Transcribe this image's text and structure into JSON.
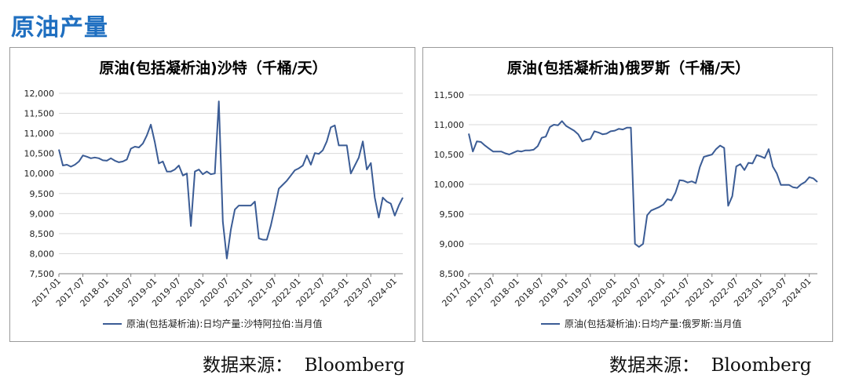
{
  "page": {
    "title": "原油产量"
  },
  "sources": [
    "数据来源：  Bloomberg",
    "数据来源：  Bloomberg"
  ],
  "colors": {
    "title": "#1f6fc0",
    "series": "#3b5c95",
    "grid": "#d9d9d9",
    "axis": "#7f7f7f"
  },
  "chart_data": [
    {
      "type": "line",
      "title": "原油(包括凝析油)沙特（千桶/天）",
      "xlabel": "",
      "ylabel": "",
      "ylim": [
        7500,
        12000
      ],
      "yticks": [
        7500,
        8000,
        8500,
        9000,
        9500,
        10000,
        10500,
        11000,
        11500,
        12000
      ],
      "ytick_labels": [
        "7,500",
        "8,000",
        "8,500",
        "9,000",
        "9,500",
        "10,000",
        "10,500",
        "11,000",
        "11,500",
        "12,000"
      ],
      "x_start": "2017-01",
      "xtick_labels": [
        "2017-01",
        "2017-07",
        "2018-01",
        "2018-07",
        "2019-01",
        "2019-07",
        "2020-01",
        "2020-07",
        "2021-01",
        "2021-07",
        "2022-01",
        "2022-07",
        "2023-01",
        "2023-07",
        "2024-01"
      ],
      "grid": true,
      "legend_position": "bottom",
      "series": [
        {
          "name": "原油(包括凝析油):日均产量:沙特阿拉伯:当月值",
          "values": [
            10600,
            10200,
            10220,
            10170,
            10220,
            10300,
            10450,
            10420,
            10380,
            10400,
            10380,
            10330,
            10320,
            10380,
            10320,
            10280,
            10300,
            10350,
            10620,
            10670,
            10650,
            10750,
            10950,
            11220,
            10780,
            10250,
            10300,
            10050,
            10050,
            10100,
            10200,
            9950,
            10000,
            8690,
            10050,
            10100,
            9980,
            10050,
            9980,
            10000,
            11800,
            8800,
            7880,
            8600,
            9100,
            9200,
            9200,
            9200,
            9200,
            9300,
            8380,
            8350,
            8350,
            8700,
            9150,
            9620,
            9720,
            9820,
            9950,
            10080,
            10130,
            10200,
            10450,
            10220,
            10510,
            10490,
            10580,
            10800,
            11150,
            11200,
            10700,
            10700,
            10700,
            10000,
            10200,
            10400,
            10800,
            10100,
            10260,
            9400,
            8900,
            9400,
            9300,
            9250,
            8950,
            9200,
            9400
          ]
        }
      ]
    },
    {
      "type": "line",
      "title": "原油(包括凝析油)俄罗斯（千桶/天）",
      "xlabel": "",
      "ylabel": "",
      "ylim": [
        8500,
        11500
      ],
      "yticks": [
        8500,
        9000,
        9500,
        10000,
        10500,
        11000,
        11500
      ],
      "ytick_labels": [
        "8,500",
        "9,000",
        "9,500",
        "10,000",
        "10,500",
        "11,000",
        "11,500"
      ],
      "x_start": "2017-01",
      "xtick_labels": [
        "2017-01",
        "2017-07",
        "2018-01",
        "2018-07",
        "2019-01",
        "2019-07",
        "2020-01",
        "2020-07",
        "2021-01",
        "2021-07",
        "2022-01",
        "2022-07",
        "2023-01",
        "2023-07",
        "2024-01"
      ],
      "grid": true,
      "legend_position": "bottom",
      "series": [
        {
          "name": "原油(包括凝析油):日均产量:俄罗斯:当月值",
          "values": [
            10850,
            10550,
            10720,
            10710,
            10650,
            10600,
            10550,
            10550,
            10550,
            10520,
            10500,
            10530,
            10560,
            10550,
            10570,
            10570,
            10580,
            10640,
            10780,
            10800,
            10960,
            11000,
            10990,
            11060,
            10980,
            10940,
            10900,
            10840,
            10720,
            10750,
            10760,
            10890,
            10870,
            10840,
            10850,
            10890,
            10900,
            10930,
            10920,
            10950,
            10950,
            9000,
            8950,
            9000,
            9480,
            9560,
            9590,
            9620,
            9660,
            9750,
            9730,
            9860,
            10070,
            10060,
            10030,
            10050,
            10020,
            10290,
            10460,
            10480,
            10500,
            10590,
            10650,
            10610,
            9640,
            9800,
            10300,
            10340,
            10240,
            10360,
            10350,
            10490,
            10470,
            10440,
            10590,
            10300,
            10180,
            9990,
            9990,
            9990,
            9950,
            9940,
            10000,
            10040,
            10120,
            10100,
            10040
          ]
        }
      ]
    }
  ]
}
